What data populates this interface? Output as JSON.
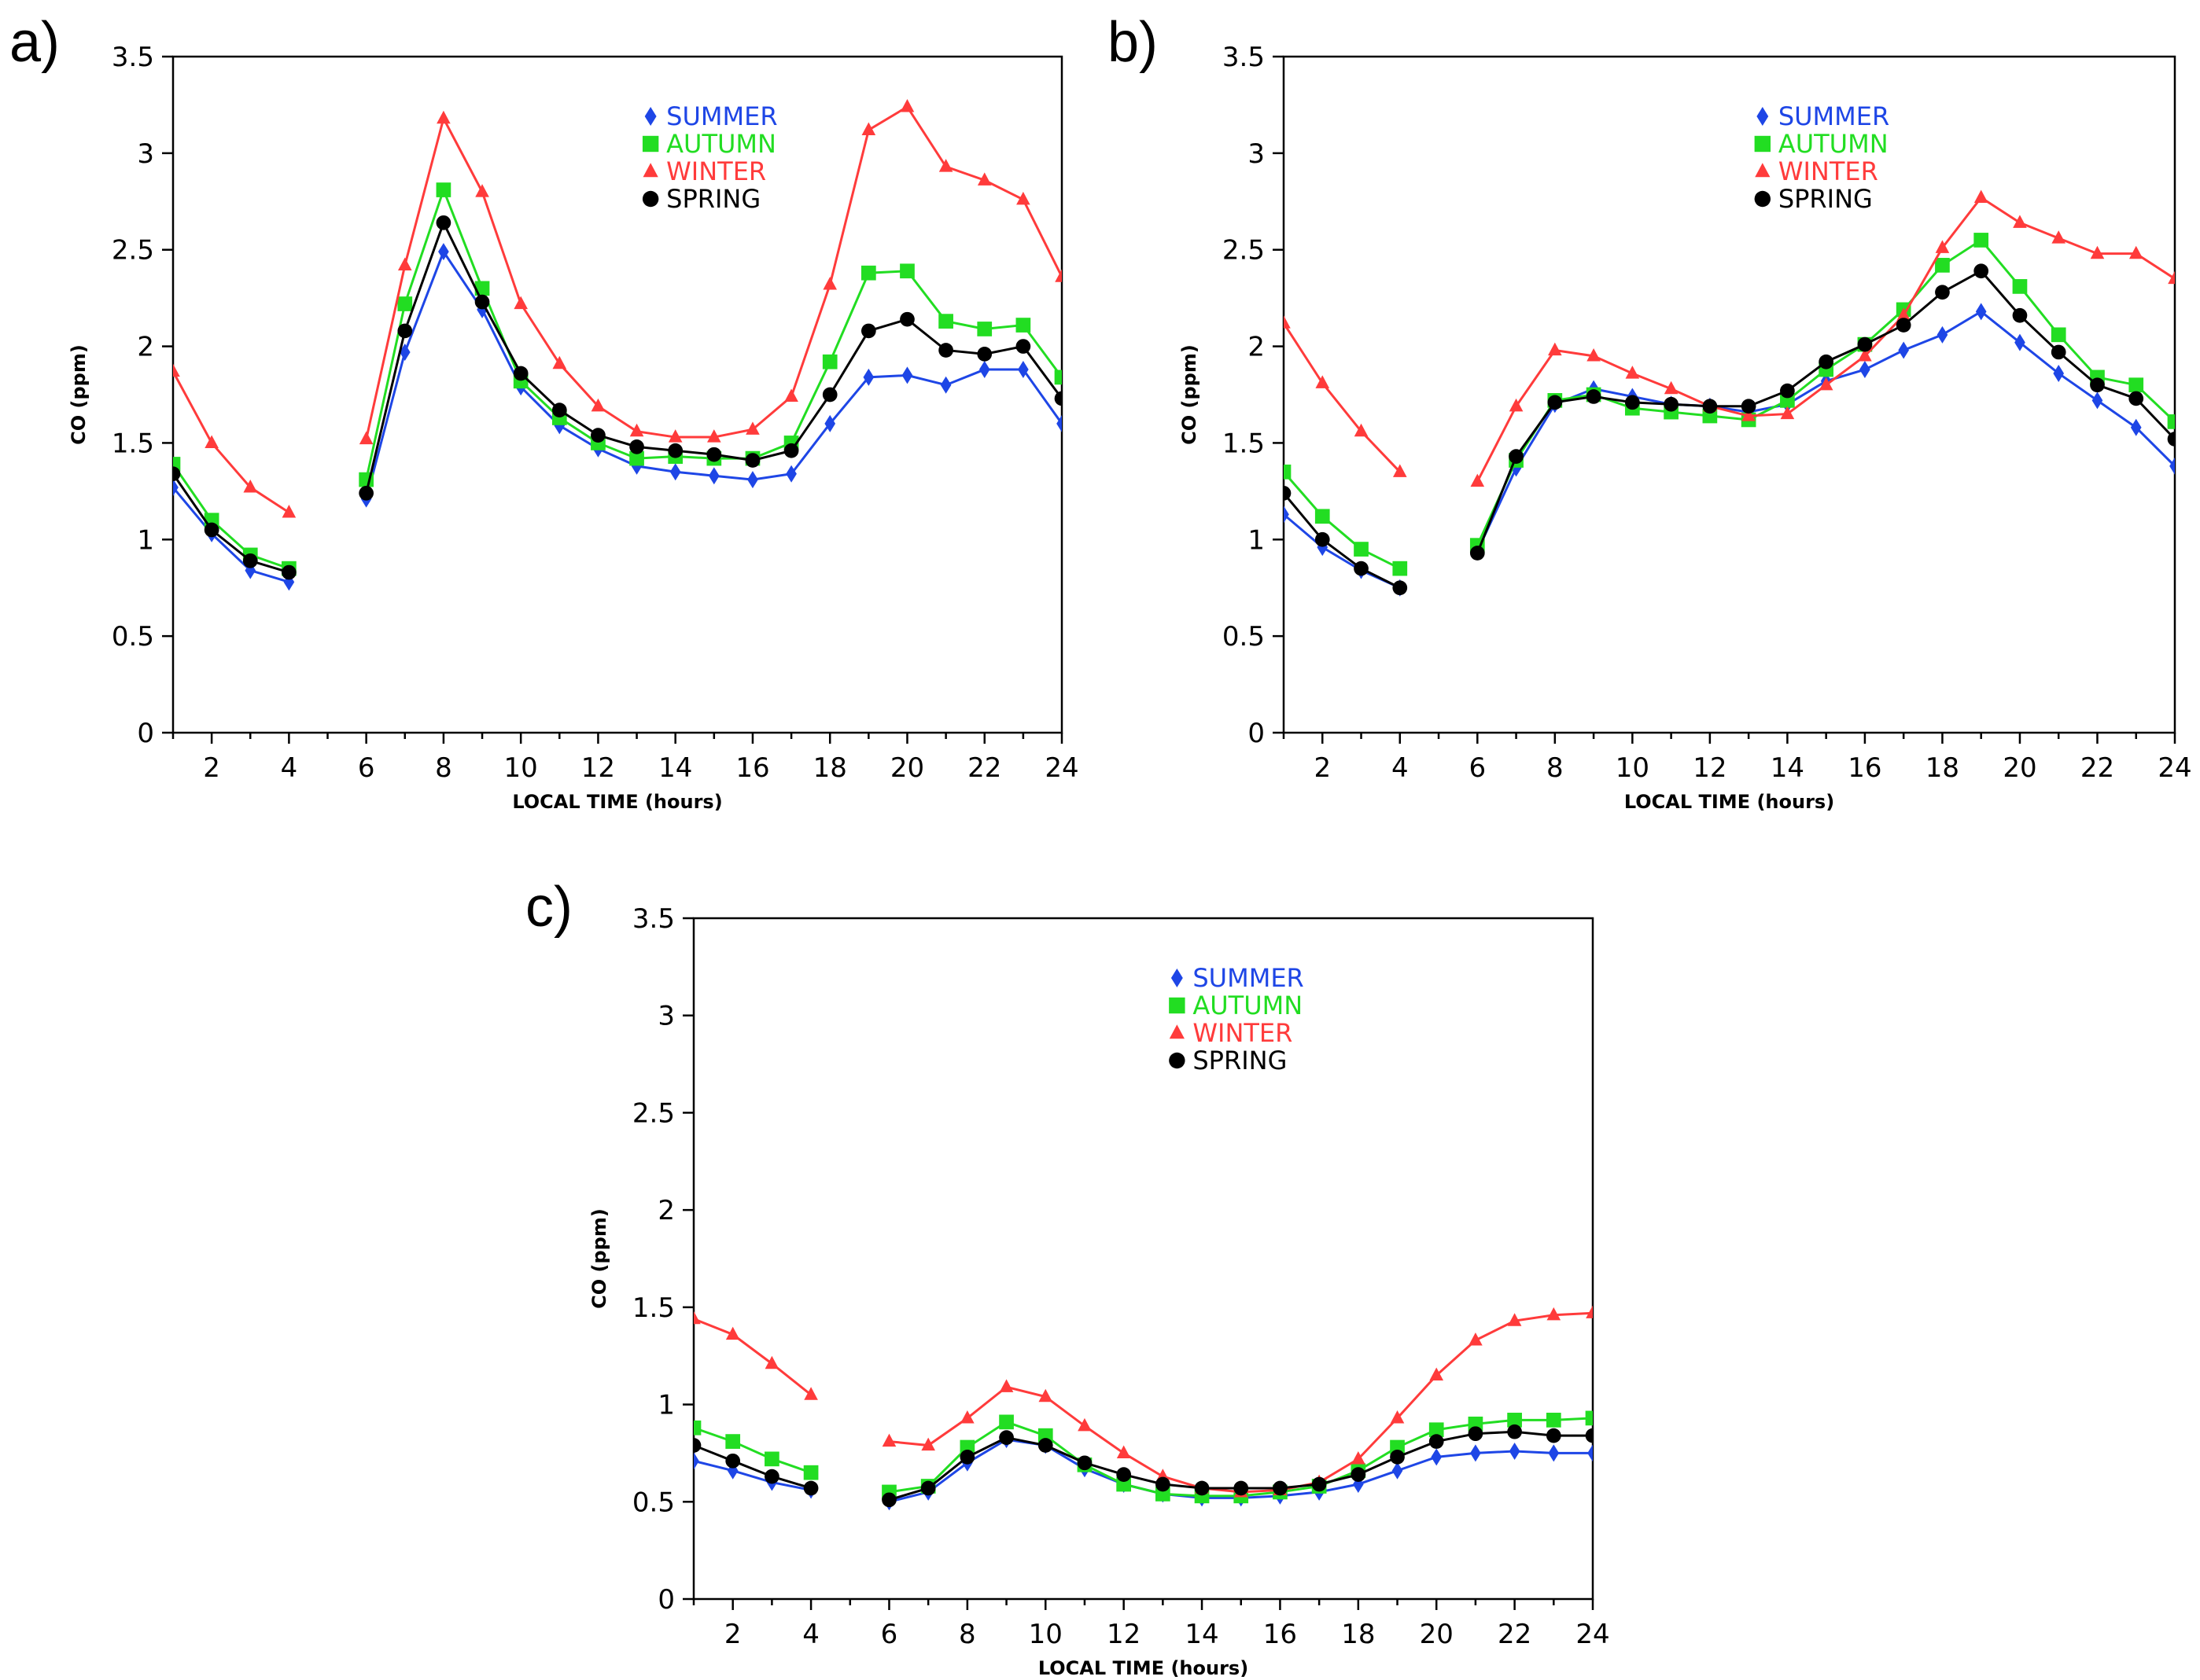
{
  "chart_data": [
    {
      "type": "line",
      "panel_label": "a)",
      "xlabel": "LOCAL TIME (hours)",
      "ylabel": "CO (ppm)",
      "xlim": [
        1,
        24
      ],
      "ylim": [
        0,
        3.5
      ],
      "xticks": [
        2,
        4,
        6,
        8,
        10,
        12,
        14,
        16,
        18,
        20,
        22,
        24
      ],
      "yticks": [
        0,
        0.5,
        1,
        1.5,
        2,
        2.5,
        3,
        3.5
      ],
      "ytick_labels": [
        "0",
        "0.5",
        "1",
        "1.5",
        "2",
        "2.5",
        "3",
        "3.5"
      ],
      "legend_position": "top-center",
      "x": [
        1,
        2,
        3,
        4,
        5,
        6,
        7,
        8,
        9,
        10,
        11,
        12,
        13,
        14,
        15,
        16,
        17,
        18,
        19,
        20,
        21,
        22,
        23,
        24
      ],
      "series": [
        {
          "name": "SUMMER",
          "color": "#1e46e6",
          "marker": "diamond",
          "values": [
            1.27,
            1.03,
            0.84,
            0.78,
            null,
            1.21,
            1.97,
            2.49,
            2.19,
            1.79,
            1.59,
            1.47,
            1.38,
            1.35,
            1.33,
            1.31,
            1.34,
            1.6,
            1.84,
            1.85,
            1.8,
            1.88,
            1.88,
            1.6
          ]
        },
        {
          "name": "AUTUMN",
          "color": "#22dd22",
          "marker": "square",
          "values": [
            1.39,
            1.1,
            0.92,
            0.85,
            null,
            1.31,
            2.22,
            2.81,
            2.3,
            1.82,
            1.63,
            1.5,
            1.42,
            1.43,
            1.42,
            1.42,
            1.5,
            1.92,
            2.38,
            2.39,
            2.13,
            2.09,
            2.11,
            1.84
          ]
        },
        {
          "name": "WINTER",
          "color": "#ff3b3b",
          "marker": "triangle",
          "values": [
            1.87,
            1.5,
            1.27,
            1.14,
            null,
            1.52,
            2.42,
            3.18,
            2.8,
            2.22,
            1.91,
            1.69,
            1.56,
            1.53,
            1.53,
            1.57,
            1.74,
            2.32,
            3.12,
            3.24,
            2.93,
            2.86,
            2.76,
            2.36
          ]
        },
        {
          "name": "SPRING",
          "color": "#000000",
          "marker": "circle",
          "values": [
            1.34,
            1.05,
            0.89,
            0.83,
            null,
            1.24,
            2.08,
            2.64,
            2.23,
            1.86,
            1.67,
            1.54,
            1.48,
            1.46,
            1.44,
            1.41,
            1.46,
            1.75,
            2.08,
            2.14,
            1.98,
            1.96,
            2.0,
            1.73
          ]
        }
      ]
    },
    {
      "type": "line",
      "panel_label": "b)",
      "xlabel": "LOCAL TIME (hours)",
      "ylabel": "CO (ppm)",
      "xlim": [
        1,
        24
      ],
      "ylim": [
        0,
        3.5
      ],
      "xticks": [
        2,
        4,
        6,
        8,
        10,
        12,
        14,
        16,
        18,
        20,
        22,
        24
      ],
      "yticks": [
        0,
        0.5,
        1,
        1.5,
        2,
        2.5,
        3,
        3.5
      ],
      "ytick_labels": [
        "0",
        "0.5",
        "1",
        "1.5",
        "2",
        "2.5",
        "3",
        "3.5"
      ],
      "legend_position": "top-center",
      "x": [
        1,
        2,
        3,
        4,
        5,
        6,
        7,
        8,
        9,
        10,
        11,
        12,
        13,
        14,
        15,
        16,
        17,
        18,
        19,
        20,
        21,
        22,
        23,
        24
      ],
      "series": [
        {
          "name": "SUMMER",
          "color": "#1e46e6",
          "marker": "diamond",
          "values": [
            1.13,
            0.96,
            0.84,
            0.75,
            null,
            0.94,
            1.37,
            1.7,
            1.78,
            1.74,
            1.7,
            1.69,
            1.66,
            1.7,
            1.82,
            1.88,
            1.98,
            2.06,
            2.18,
            2.02,
            1.86,
            1.72,
            1.58,
            1.38
          ]
        },
        {
          "name": "AUTUMN",
          "color": "#22dd22",
          "marker": "square",
          "values": [
            1.35,
            1.12,
            0.95,
            0.85,
            null,
            0.97,
            1.41,
            1.72,
            1.75,
            1.68,
            1.66,
            1.64,
            1.62,
            1.72,
            1.88,
            2.01,
            2.19,
            2.42,
            2.55,
            2.31,
            2.06,
            1.84,
            1.8,
            1.61
          ]
        },
        {
          "name": "WINTER",
          "color": "#ff3b3b",
          "marker": "triangle",
          "values": [
            2.12,
            1.81,
            1.56,
            1.35,
            null,
            1.3,
            1.69,
            1.98,
            1.95,
            1.86,
            1.78,
            1.69,
            1.64,
            1.65,
            1.8,
            1.95,
            2.16,
            2.51,
            2.77,
            2.64,
            2.56,
            2.48,
            2.48,
            2.35
          ]
        },
        {
          "name": "SPRING",
          "color": "#000000",
          "marker": "circle",
          "values": [
            1.24,
            1.0,
            0.85,
            0.75,
            null,
            0.93,
            1.43,
            1.71,
            1.74,
            1.71,
            1.7,
            1.69,
            1.69,
            1.77,
            1.92,
            2.01,
            2.11,
            2.28,
            2.39,
            2.16,
            1.97,
            1.8,
            1.73,
            1.52
          ]
        }
      ]
    },
    {
      "type": "line",
      "panel_label": "c)",
      "xlabel": "LOCAL TIME (hours)",
      "ylabel": "CO (ppm)",
      "xlim": [
        1,
        24
      ],
      "ylim": [
        0,
        3.5
      ],
      "xticks": [
        2,
        4,
        6,
        8,
        10,
        12,
        14,
        16,
        18,
        20,
        22,
        24
      ],
      "yticks": [
        0,
        0.5,
        1,
        1.5,
        2,
        2.5,
        3,
        3.5
      ],
      "ytick_labels": [
        "0",
        "0.5",
        "1",
        "1.5",
        "2",
        "2.5",
        "3",
        "3.5"
      ],
      "legend_position": "top-center",
      "x": [
        1,
        2,
        3,
        4,
        5,
        6,
        7,
        8,
        9,
        10,
        11,
        12,
        13,
        14,
        15,
        16,
        17,
        18,
        19,
        20,
        21,
        22,
        23,
        24
      ],
      "series": [
        {
          "name": "SUMMER",
          "color": "#1e46e6",
          "marker": "diamond",
          "values": [
            0.71,
            0.66,
            0.6,
            0.56,
            null,
            0.5,
            0.55,
            0.7,
            0.82,
            0.79,
            0.67,
            0.59,
            0.54,
            0.52,
            0.52,
            0.53,
            0.55,
            0.59,
            0.66,
            0.73,
            0.75,
            0.76,
            0.75,
            0.75
          ]
        },
        {
          "name": "AUTUMN",
          "color": "#22dd22",
          "marker": "square",
          "values": [
            0.88,
            0.81,
            0.72,
            0.65,
            null,
            0.55,
            0.58,
            0.78,
            0.91,
            0.84,
            0.69,
            0.59,
            0.54,
            0.53,
            0.53,
            0.55,
            0.58,
            0.66,
            0.78,
            0.87,
            0.9,
            0.92,
            0.92,
            0.93
          ]
        },
        {
          "name": "WINTER",
          "color": "#ff3b3b",
          "marker": "triangle",
          "values": [
            1.44,
            1.36,
            1.21,
            1.05,
            null,
            0.81,
            0.79,
            0.93,
            1.09,
            1.04,
            0.89,
            0.75,
            0.63,
            0.57,
            0.55,
            0.56,
            0.6,
            0.72,
            0.93,
            1.15,
            1.33,
            1.43,
            1.46,
            1.47
          ]
        },
        {
          "name": "SPRING",
          "color": "#000000",
          "marker": "circle",
          "values": [
            0.79,
            0.71,
            0.63,
            0.57,
            null,
            0.51,
            0.57,
            0.73,
            0.83,
            0.79,
            0.7,
            0.64,
            0.59,
            0.57,
            0.57,
            0.57,
            0.59,
            0.64,
            0.73,
            0.81,
            0.85,
            0.86,
            0.84,
            0.84
          ]
        }
      ]
    }
  ]
}
